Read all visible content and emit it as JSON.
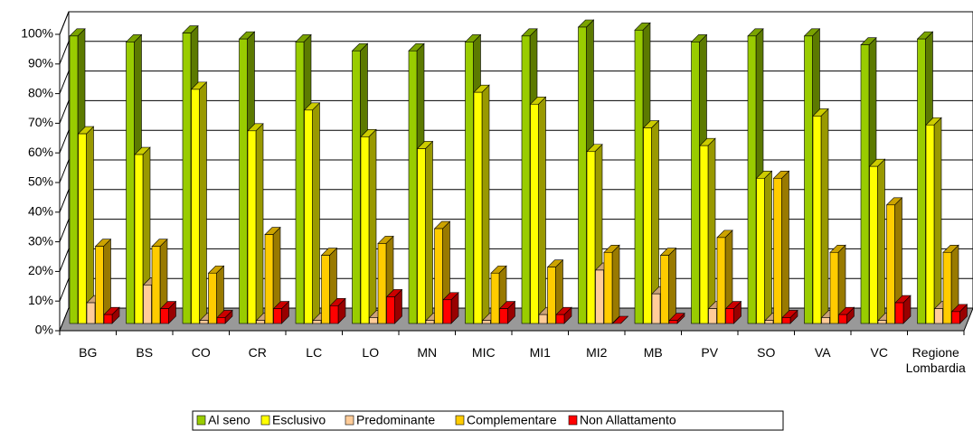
{
  "chart_data": {
    "type": "bar3d",
    "categories": [
      "BG",
      "BS",
      "CO",
      "CR",
      "LC",
      "LO",
      "MN",
      "MIC",
      "MI1",
      "MI2",
      "MB",
      "PV",
      "SO",
      "VA",
      "VC",
      "Regione Lombardia"
    ],
    "series": [
      {
        "name": "Al seno",
        "color": "#99cc00",
        "values": [
          97,
          95,
          98,
          96,
          95,
          92,
          92,
          95,
          97,
          100,
          99,
          95,
          97,
          97,
          94,
          96
        ]
      },
      {
        "name": "Esclusivo",
        "color": "#ffff00",
        "values": [
          64,
          57,
          79,
          65,
          72,
          63,
          59,
          78,
          74,
          58,
          66,
          60,
          49,
          70,
          53,
          67
        ]
      },
      {
        "name": "Predominante",
        "color": "#ffcc99",
        "values": [
          7,
          13,
          1,
          1,
          1,
          2,
          1,
          1,
          3,
          18,
          10,
          5,
          1,
          2,
          1,
          5
        ]
      },
      {
        "name": "Complementare",
        "color": "#ffcc00",
        "values": [
          26,
          26,
          17,
          30,
          23,
          27,
          32,
          17,
          19,
          24,
          23,
          29,
          49,
          24,
          40,
          24
        ]
      },
      {
        "name": "Non Allattamento",
        "color": "#ff0000",
        "values": [
          3,
          5,
          2,
          5,
          6,
          9,
          8,
          5,
          3,
          0,
          1,
          5,
          2,
          3,
          7,
          4
        ]
      }
    ],
    "ylim": [
      0,
      100
    ],
    "yticks": [
      {
        "value": 0,
        "label": "0%"
      },
      {
        "value": 10,
        "label": "10%"
      },
      {
        "value": 20,
        "label": "20%"
      },
      {
        "value": 30,
        "label": "30%"
      },
      {
        "value": 40,
        "label": "40%"
      },
      {
        "value": 50,
        "label": "50%"
      },
      {
        "value": 60,
        "label": "60%"
      },
      {
        "value": 70,
        "label": "70%"
      },
      {
        "value": 80,
        "label": "80%"
      },
      {
        "value": 90,
        "label": "90%"
      },
      {
        "value": 100,
        "label": "100%"
      }
    ],
    "grid": true,
    "legend": "bottom"
  }
}
